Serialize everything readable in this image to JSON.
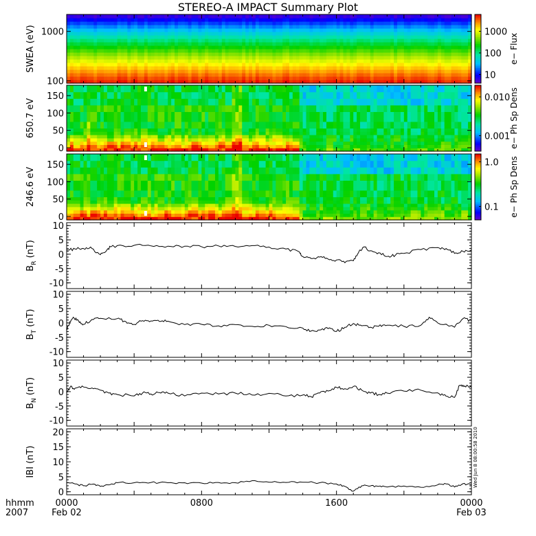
{
  "title": "STEREO-A IMPACT Summary Plot",
  "stamp": "Wed Jun  8 08:00:58 2010",
  "x_axis": {
    "label_line1": "hhmm",
    "label_line2": "2007",
    "ticks": [
      {
        "value": 0,
        "line1": "0000",
        "line2": "Feb 02"
      },
      {
        "value": 8,
        "line1": "0800",
        "line2": ""
      },
      {
        "value": 16,
        "line1": "1600",
        "line2": ""
      },
      {
        "value": 24,
        "line1": "0000",
        "line2": "Feb 03"
      }
    ],
    "range_hours": [
      0,
      24
    ]
  },
  "chart_data": [
    {
      "type": "heatmap",
      "name": "swea",
      "ylabel": "SWEA (eV)",
      "y_scale": "log",
      "ylim": [
        90,
        2200
      ],
      "yticks": [
        {
          "value": 100,
          "label": "100"
        },
        {
          "value": 1000,
          "label": "1000"
        }
      ],
      "colorbar": {
        "label": "e− Flux",
        "scale": "log",
        "range": [
          4,
          6000
        ],
        "ticks": [
          {
            "value": 10,
            "label": "10"
          },
          {
            "value": 100,
            "label": "100"
          },
          {
            "value": 1000,
            "label": "1000"
          }
        ]
      }
    },
    {
      "type": "heatmap",
      "name": "pad650",
      "ylabel": "650.7 eV",
      "y_scale": "linear",
      "ylim": [
        -10,
        180
      ],
      "yticks": [
        {
          "value": 0,
          "label": "0"
        },
        {
          "value": 50,
          "label": "50"
        },
        {
          "value": 100,
          "label": "100"
        },
        {
          "value": 150,
          "label": "150"
        }
      ],
      "colorbar": {
        "label": "e− Ph Sp Dens",
        "scale": "log",
        "range": [
          0.0004,
          0.02
        ],
        "ticks": [
          {
            "value": 0.001,
            "label": "0.001"
          },
          {
            "value": 0.01,
            "label": "0.010"
          }
        ]
      }
    },
    {
      "type": "heatmap",
      "name": "pad246",
      "ylabel": "246.6 eV",
      "y_scale": "linear",
      "ylim": [
        -10,
        180
      ],
      "yticks": [
        {
          "value": 0,
          "label": "0"
        },
        {
          "value": 50,
          "label": "50"
        },
        {
          "value": 100,
          "label": "100"
        },
        {
          "value": 150,
          "label": "150"
        }
      ],
      "colorbar": {
        "label": "e− Ph Sp Dens",
        "scale": "log",
        "range": [
          0.05,
          1.5
        ],
        "ticks": [
          {
            "value": 0.1,
            "label": "0.1"
          },
          {
            "value": 1.0,
            "label": "1.0"
          }
        ]
      }
    },
    {
      "type": "line",
      "name": "br",
      "ylabel_main": "B",
      "ylabel_sub": "R",
      "ylabel_unit": " (nT)",
      "ylim": [
        -12,
        11
      ],
      "yticks": [
        -10,
        -5,
        0,
        5,
        10
      ],
      "x": [
        0,
        0.5,
        1,
        1.5,
        2,
        2.3,
        2.6,
        3,
        4,
        5,
        6,
        7,
        8,
        9,
        10,
        11,
        12,
        13,
        13.8,
        14,
        14.5,
        15,
        15.5,
        16,
        16.5,
        17,
        17.3,
        17.6,
        18,
        18.5,
        19,
        19.5,
        20,
        21,
        22,
        22.5,
        23,
        23.5,
        24
      ],
      "y": [
        1.5,
        1.8,
        2.0,
        2.0,
        -0.2,
        0.8,
        2.6,
        3.0,
        3.1,
        2.9,
        2.8,
        2.8,
        2.6,
        2.9,
        2.7,
        3.0,
        2.5,
        1.8,
        0.8,
        -0.8,
        -1.5,
        -1.0,
        -1.7,
        -2.0,
        -3.0,
        -2.3,
        0.5,
        2.5,
        1.2,
        0.5,
        -0.8,
        -0.3,
        0.3,
        1.6,
        2.3,
        2.0,
        0.3,
        1.0,
        1.5
      ]
    },
    {
      "type": "line",
      "name": "bt",
      "ylabel_main": "B",
      "ylabel_sub": "T",
      "ylabel_unit": " (nT)",
      "ylim": [
        -12,
        11
      ],
      "yticks": [
        -10,
        -5,
        0,
        5,
        10
      ],
      "x": [
        0,
        0.2,
        0.4,
        0.7,
        1,
        1.5,
        2,
        3,
        3.5,
        4,
        4.5,
        5,
        5.5,
        6,
        7,
        8,
        9,
        10,
        11,
        12,
        13,
        14,
        14.5,
        15,
        15.5,
        16,
        16.5,
        17,
        17.5,
        18,
        18.5,
        19,
        20,
        21,
        21.5,
        22,
        23,
        23.5,
        24
      ],
      "y": [
        -2.5,
        0.5,
        2.0,
        0.8,
        -0.5,
        1.2,
        1.6,
        1.5,
        0.5,
        -0.5,
        0.8,
        0.7,
        0.5,
        0.6,
        -0.6,
        -0.5,
        -1.0,
        -0.6,
        -1.2,
        -0.8,
        -1.3,
        -1.8,
        -2.8,
        -2.5,
        -2.0,
        -3.0,
        -1.5,
        -0.2,
        -1.0,
        -1.5,
        -1.2,
        -0.8,
        -1.2,
        -0.8,
        2.0,
        0.0,
        -1.5,
        1.5,
        0.8
      ]
    },
    {
      "type": "line",
      "name": "bn",
      "ylabel_main": "B",
      "ylabel_sub": "N",
      "ylabel_unit": " (nT)",
      "ylim": [
        -12,
        11
      ],
      "yticks": [
        -10,
        -5,
        0,
        5,
        10
      ],
      "x": [
        0,
        0.2,
        0.5,
        1,
        1.5,
        2,
        2.5,
        3,
        4,
        4.5,
        5,
        5.5,
        6,
        7,
        8,
        9,
        10,
        11,
        12,
        13,
        14,
        14.5,
        15,
        15.5,
        16,
        16.5,
        17,
        17.5,
        18,
        18.5,
        19,
        20,
        21,
        22,
        22.5,
        23,
        23.3,
        23.6,
        24
      ],
      "y": [
        -0.5,
        1.5,
        1.2,
        1.6,
        1.3,
        0.5,
        -0.5,
        -1.0,
        -1.5,
        -0.5,
        -0.8,
        -0.3,
        -0.5,
        -1.5,
        -0.5,
        -0.8,
        -0.5,
        -1.2,
        -0.6,
        -1.5,
        -1.2,
        -1.8,
        -0.5,
        0.2,
        1.5,
        1.0,
        1.8,
        0.5,
        -0.5,
        -1.0,
        -0.5,
        0.2,
        0.5,
        -0.4,
        -1.6,
        -2.0,
        2.2,
        2.0,
        1.5
      ]
    },
    {
      "type": "line",
      "name": "bmag",
      "ylabel_main": "IBI",
      "ylabel_sub": "",
      "ylabel_unit": " (nT)",
      "ylim": [
        -1,
        21
      ],
      "yticks": [
        0,
        5,
        10,
        15,
        20
      ],
      "x": [
        0,
        0.5,
        1,
        1.5,
        2,
        2.5,
        3,
        4,
        5,
        6,
        7,
        8,
        9,
        10,
        11,
        12,
        13,
        14,
        15,
        16,
        16.5,
        17,
        17.5,
        18,
        18.5,
        19,
        20,
        21,
        22,
        22.5,
        23,
        23.5,
        24
      ],
      "y": [
        3.0,
        2.6,
        2.0,
        2.5,
        1.8,
        2.3,
        3.0,
        3.0,
        3.1,
        3.0,
        3.0,
        2.9,
        3.1,
        3.0,
        3.7,
        3.2,
        3.1,
        3.2,
        3.0,
        2.6,
        1.8,
        0.2,
        2.0,
        1.9,
        1.8,
        1.6,
        1.9,
        1.5,
        2.3,
        2.6,
        1.6,
        2.7,
        2.3
      ]
    }
  ]
}
